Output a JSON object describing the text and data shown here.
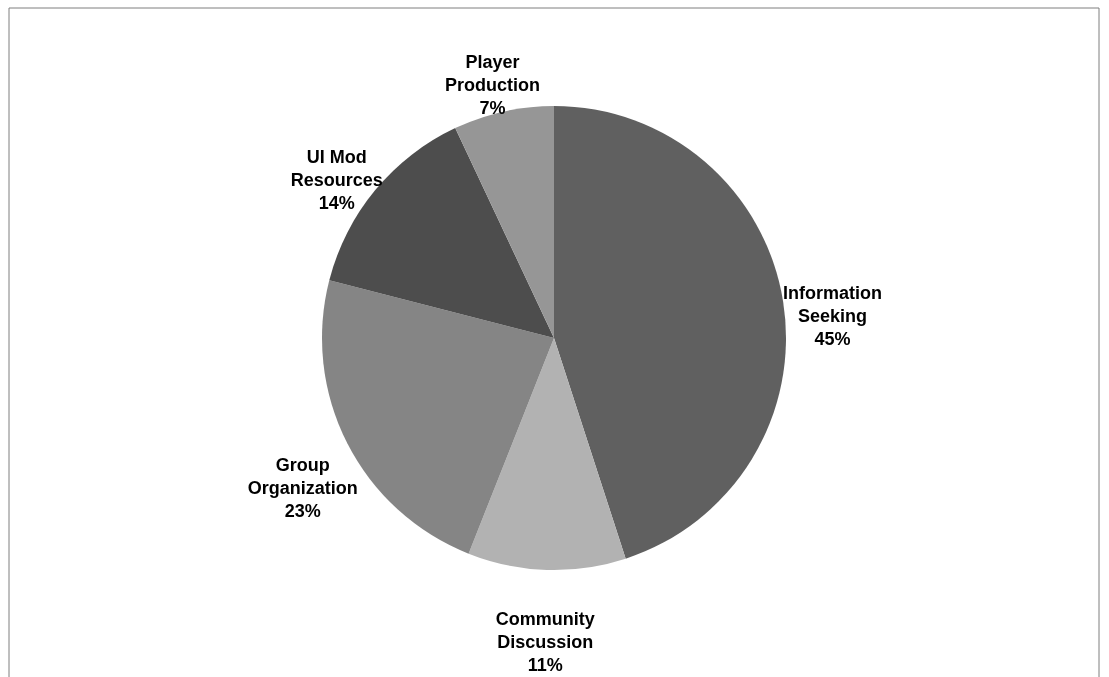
{
  "chart_data": {
    "type": "pie",
    "categories": [
      "Information Seeking",
      "Community Discussion",
      "Group Organization",
      "UI Mod Resources",
      "Player Production"
    ],
    "values": [
      45,
      11,
      23,
      14,
      7
    ],
    "value_labels": [
      "45%",
      "11%",
      "23%",
      "14%",
      "7%"
    ],
    "colors": [
      "#606060",
      "#b2b2b2",
      "#858585",
      "#4d4d4d",
      "#969696"
    ]
  }
}
